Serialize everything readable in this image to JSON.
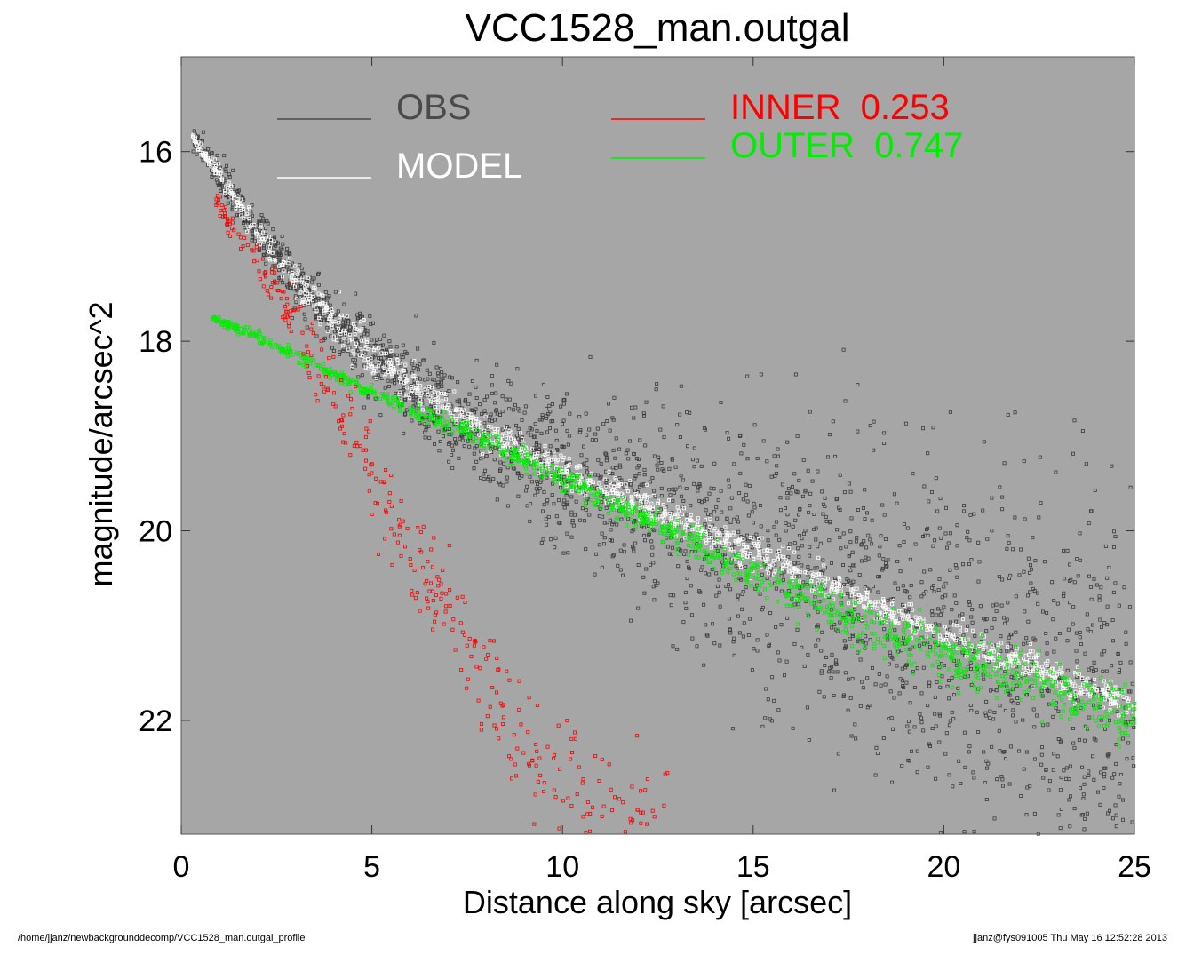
{
  "footer": {
    "path": "/home/jjanz/newbackgrounddecomp/VCC1528_man.outgal_profile",
    "stamp": "jjanz@fys091005  Thu May 16 12:52:28 2013"
  },
  "chart_data": {
    "type": "scatter",
    "title": "VCC1528_man.outgal",
    "xlabel": "Distance along sky [arcsec]",
    "ylabel": "magnitude/arcsec^2",
    "xlim": [
      0,
      25
    ],
    "ylim": [
      23.2,
      15.0
    ],
    "y_inverted": true,
    "xticks": [
      0,
      5,
      10,
      15,
      20,
      25
    ],
    "yticks": [
      16,
      18,
      20,
      22
    ],
    "background_color": "#a6a6a6",
    "grid": false,
    "legend": [
      {
        "label": "OBS",
        "color": "#4a4a4a"
      },
      {
        "label": "MODEL",
        "color": "#ffffff"
      },
      {
        "label": "INNER  0.253",
        "color": "#ff0000"
      },
      {
        "label": "OUTER  0.747",
        "color": "#00ee00"
      }
    ],
    "series": [
      {
        "name": "OBS",
        "color": "#3c3c3c",
        "marker": "square",
        "trend_x": [
          0.3,
          1,
          2,
          3,
          4,
          5,
          6,
          7,
          8,
          10,
          12,
          14,
          16,
          18,
          20,
          22,
          25
        ],
        "trend_y": [
          15.85,
          16.25,
          16.85,
          17.35,
          17.8,
          18.15,
          18.45,
          18.7,
          18.95,
          19.35,
          19.7,
          20.05,
          20.4,
          20.75,
          21.1,
          21.4,
          21.85
        ],
        "scatter_y": [
          0.05,
          0.08,
          0.12,
          0.15,
          0.18,
          0.2,
          0.22,
          0.25,
          0.3,
          0.4,
          0.5,
          0.6,
          0.7,
          0.8,
          0.9,
          1.0,
          1.1
        ]
      },
      {
        "name": "MODEL",
        "color": "#ffffff",
        "marker": "square",
        "trend_x": [
          0.3,
          1,
          2,
          3,
          4,
          5,
          6,
          7,
          8,
          10,
          12,
          14,
          16,
          18,
          20,
          22,
          25
        ],
        "trend_y": [
          15.85,
          16.25,
          16.85,
          17.35,
          17.8,
          18.15,
          18.45,
          18.7,
          18.95,
          19.35,
          19.7,
          20.05,
          20.4,
          20.75,
          21.1,
          21.4,
          21.85
        ],
        "scatter_y": [
          0.03,
          0.05,
          0.08,
          0.1,
          0.12,
          0.12,
          0.1,
          0.08,
          0.08,
          0.08,
          0.08,
          0.08,
          0.08,
          0.08,
          0.08,
          0.08,
          0.08
        ]
      },
      {
        "name": "INNER",
        "color": "#ff0000",
        "marker": "square",
        "trend_x": [
          0.8,
          1.5,
          2.5,
          3.5,
          4.5,
          5.5,
          6.5,
          7.5,
          8.5,
          9.5,
          10.5,
          11.5,
          12.3
        ],
        "trend_y": [
          16.45,
          16.9,
          17.45,
          18.15,
          18.95,
          19.7,
          20.5,
          21.2,
          21.9,
          22.5,
          22.9,
          22.95,
          23.1
        ],
        "scatter_y": [
          0.05,
          0.08,
          0.12,
          0.2,
          0.25,
          0.3,
          0.3,
          0.3,
          0.3,
          0.3,
          0.3,
          0.3,
          0.3
        ],
        "x_end": 12.8
      },
      {
        "name": "OUTER",
        "color": "#00ee00",
        "marker": "square",
        "trend_x": [
          0.8,
          2,
          3,
          4,
          5,
          6,
          7,
          8,
          10,
          12,
          14,
          16,
          18,
          20,
          22,
          25
        ],
        "trend_y": [
          17.75,
          17.95,
          18.15,
          18.35,
          18.55,
          18.72,
          18.88,
          19.05,
          19.45,
          19.85,
          20.25,
          20.65,
          21.0,
          21.3,
          21.55,
          22.0
        ],
        "scatter_y": [
          0.02,
          0.03,
          0.03,
          0.03,
          0.04,
          0.04,
          0.05,
          0.05,
          0.06,
          0.07,
          0.08,
          0.1,
          0.12,
          0.13,
          0.14,
          0.15
        ]
      }
    ]
  }
}
